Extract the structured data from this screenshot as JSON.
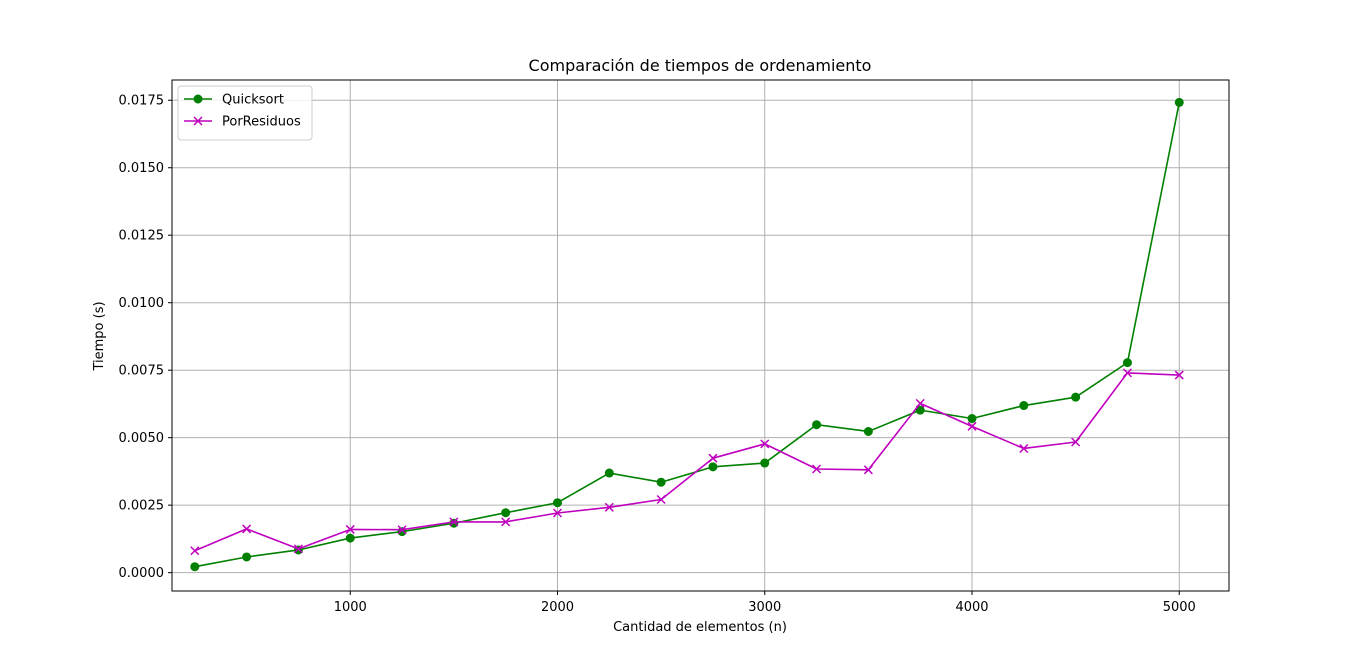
{
  "chart_data": {
    "type": "line",
    "title": "Comparación de tiempos de ordenamiento",
    "xlabel": "Cantidad de elementos (n)",
    "ylabel": "Tiempo (s)",
    "xlim": [
      140,
      5240
    ],
    "ylim": [
      -0.00068,
      0.01825
    ],
    "xticks": [
      1000,
      2000,
      3000,
      4000,
      5000
    ],
    "xtick_labels": [
      "1000",
      "2000",
      "3000",
      "4000",
      "5000"
    ],
    "yticks": [
      0.0,
      0.0025,
      0.005,
      0.0075,
      0.01,
      0.0125,
      0.015,
      0.0175
    ],
    "ytick_labels": [
      "0.0000",
      "0.0025",
      "0.0050",
      "0.0075",
      "0.0100",
      "0.0125",
      "0.0150",
      "0.0175"
    ],
    "grid": true,
    "legend_position": "top-left",
    "x": [
      250,
      500,
      750,
      1000,
      1250,
      1500,
      1750,
      2000,
      2250,
      2500,
      2750,
      3000,
      3250,
      3500,
      3750,
      4000,
      4250,
      4500,
      4750,
      5000
    ],
    "series": [
      {
        "name": "Quicksort",
        "color": "#008000",
        "marker": "circle",
        "values": [
          0.00022,
          0.00058,
          0.00084,
          0.00128,
          0.00152,
          0.00183,
          0.00222,
          0.00259,
          0.00369,
          0.00335,
          0.00392,
          0.00406,
          0.00548,
          0.00523,
          0.00602,
          0.00571,
          0.00619,
          0.0065,
          0.00778,
          0.01742
        ]
      },
      {
        "name": "PorResiduos",
        "color": "#bf00bf",
        "marker": "x",
        "values": [
          0.00081,
          0.00162,
          0.00088,
          0.0016,
          0.00159,
          0.00188,
          0.00188,
          0.00221,
          0.00242,
          0.00271,
          0.00424,
          0.00477,
          0.00384,
          0.00381,
          0.00627,
          0.00542,
          0.0046,
          0.00484,
          0.0074,
          0.00732
        ]
      }
    ]
  }
}
